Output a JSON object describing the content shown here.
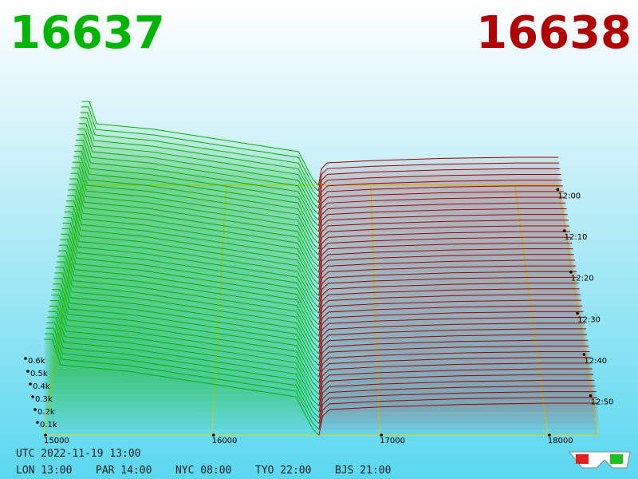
{
  "header": {
    "bid_price": "16637",
    "ask_price": "16638"
  },
  "chart_data": {
    "type": "depth3d",
    "bids": {
      "x": [
        15000,
        15050,
        15100,
        15500,
        16000,
        16500,
        16600,
        16637
      ],
      "values": [
        0.75,
        0.75,
        0.55,
        0.5,
        0.4,
        0.3,
        0.05,
        0
      ],
      "color": "#00b400"
    },
    "asks": {
      "x": [
        16638,
        16660,
        16700,
        17000,
        17500,
        18000,
        18300
      ],
      "values": [
        0,
        0.15,
        0.2,
        0.22,
        0.24,
        0.25,
        0.25
      ],
      "color": "#a00000"
    },
    "xlim": [
      15000,
      18300
    ],
    "xticks": [
      15000,
      16000,
      17000,
      18000
    ],
    "yticks": [
      {
        "value": 0.1,
        "label": "0.1k"
      },
      {
        "value": 0.2,
        "label": "0.2k"
      },
      {
        "value": 0.3,
        "label": "0.3k"
      },
      {
        "value": 0.4,
        "label": "0.4k"
      },
      {
        "value": 0.5,
        "label": "0.5k"
      },
      {
        "value": 0.6,
        "label": "0.6k"
      }
    ],
    "time_ticks": [
      "12:00",
      "12:10",
      "12:20",
      "12:30",
      "12:40",
      "12:50"
    ]
  },
  "footer": {
    "utc": "UTC 2022-11-19 13:00",
    "clocks": [
      "LON 13:00",
      "PAR 14:00",
      "NYC 08:00",
      "TYO 22:00",
      "BJS 21:00"
    ]
  }
}
